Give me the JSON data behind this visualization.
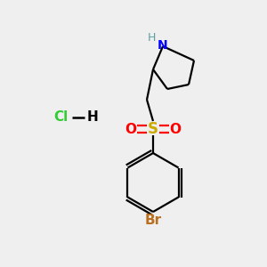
{
  "bg_color": "#efefef",
  "bond_color": "#000000",
  "N_color": "#0000ff",
  "H_color": "#5f9ea0",
  "O_color": "#ff0000",
  "S_color": "#ccaa00",
  "Br_color": "#b87020",
  "Cl_color": "#32cd32",
  "line_width": 1.6,
  "figsize": [
    3.0,
    3.0
  ],
  "dpi": 100,
  "xlim": [
    0,
    300
  ],
  "ylim": [
    0,
    300
  ]
}
